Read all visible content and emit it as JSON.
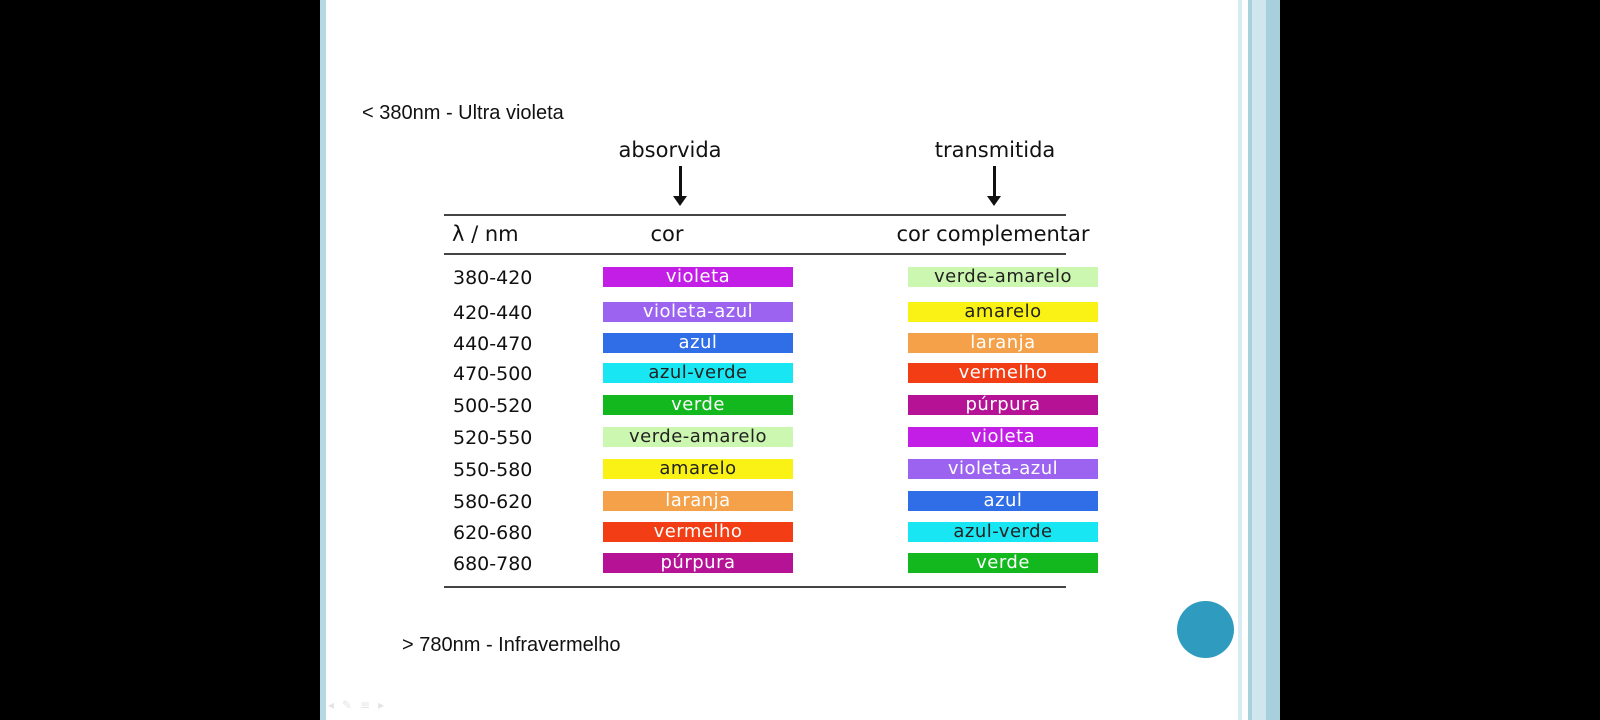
{
  "slide": {
    "note_top": "< 380nm - Ultra violeta",
    "note_bottom": "> 780nm - Infravermelho",
    "header_absorbed": "absorvida",
    "header_transmitted": "transmitida",
    "table": {
      "columns": [
        "λ / nm",
        "cor",
        "cor complementar"
      ],
      "rows": [
        {
          "range": "380-420",
          "color": {
            "label": "violeta",
            "hex": "#c21ee6"
          },
          "complement": {
            "label": "verde-amarelo",
            "hex": "#ccf7b0"
          }
        },
        {
          "range": "420-440",
          "color": {
            "label": "violeta-azul",
            "hex": "#9b63f0"
          },
          "complement": {
            "label": "amarelo",
            "hex": "#f9f214"
          }
        },
        {
          "range": "440-470",
          "color": {
            "label": "azul",
            "hex": "#2f6ee6"
          },
          "complement": {
            "label": "laranja",
            "hex": "#f4a14a"
          }
        },
        {
          "range": "470-500",
          "color": {
            "label": "azul-verde",
            "hex": "#18e6f2"
          },
          "complement": {
            "label": "vermelho",
            "hex": "#f23d15"
          }
        },
        {
          "range": "500-520",
          "color": {
            "label": "verde",
            "hex": "#12b81e"
          },
          "complement": {
            "label": "púrpura",
            "hex": "#b51296"
          }
        },
        {
          "range": "520-550",
          "color": {
            "label": "verde-amarelo",
            "hex": "#ccf7b0"
          },
          "complement": {
            "label": "violeta",
            "hex": "#c21ee6"
          }
        },
        {
          "range": "550-580",
          "color": {
            "label": "amarelo",
            "hex": "#f9f214"
          },
          "complement": {
            "label": "violeta-azul",
            "hex": "#9b63f0"
          }
        },
        {
          "range": "580-620",
          "color": {
            "label": "laranja",
            "hex": "#f4a14a"
          },
          "complement": {
            "label": "azul",
            "hex": "#2f6ee6"
          }
        },
        {
          "range": "620-680",
          "color": {
            "label": "vermelho",
            "hex": "#f23d15"
          },
          "complement": {
            "label": "azul-verde",
            "hex": "#18e6f2"
          }
        },
        {
          "range": "680-780",
          "color": {
            "label": "púrpura",
            "hex": "#b51296"
          },
          "complement": {
            "label": "verde",
            "hex": "#12b81e"
          }
        }
      ]
    }
  },
  "colors": {
    "accent": "#2f9bbf",
    "frame_edge": "#b7d7e3"
  },
  "toolbar": {
    "icons": [
      "arrow-left-icon",
      "pen-icon",
      "menu-icon",
      "arrow-right-icon"
    ],
    "glyphs": [
      "◂",
      "✎",
      "≡",
      "▸"
    ]
  }
}
